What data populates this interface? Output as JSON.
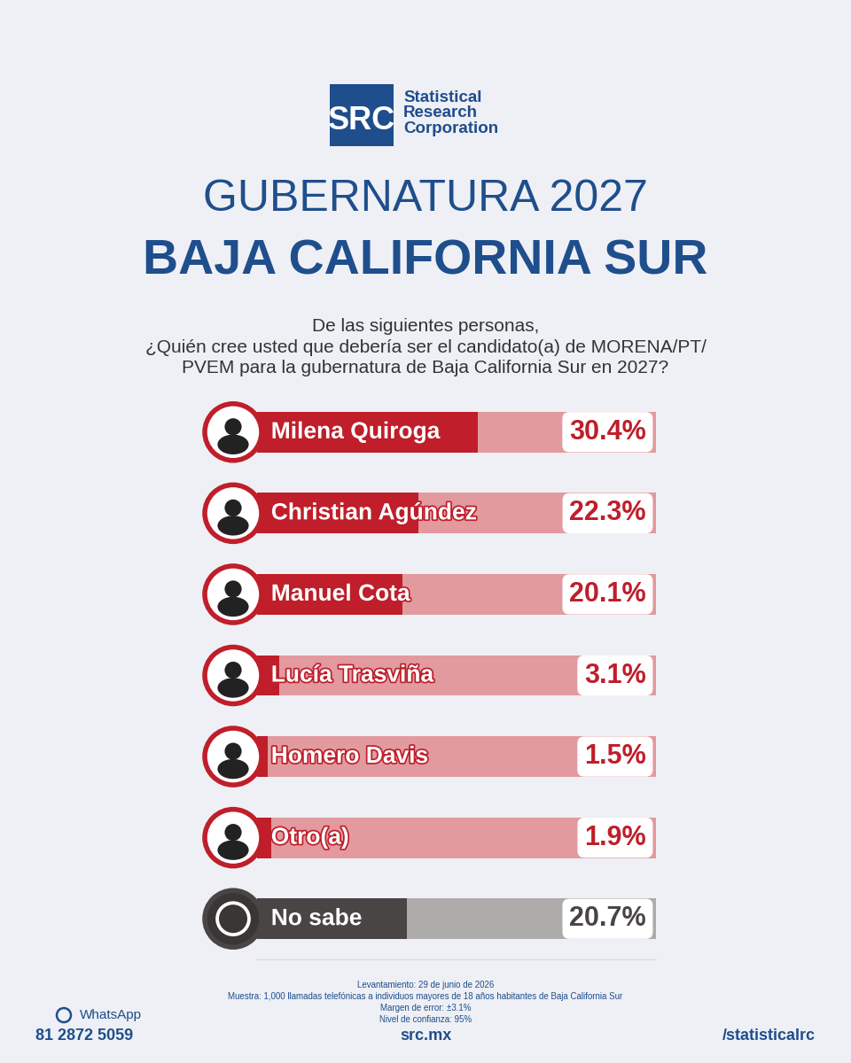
{
  "chart_data": {
    "type": "bar",
    "orientation": "horizontal",
    "subtitle": "GUBERNATURA 2027",
    "title": "BAJA CALIFORNIA SUR",
    "question": "De las siguientes personas,\n¿Quién cree usted que debería ser el candidato(a) de MORENA/PT/\nPVEM para la gubernatura de Baja California Sur en 2027?",
    "categories": [
      "Milena Quiroga",
      "Christian Agúndez",
      "Manuel Cota",
      "Lucía Trasviña",
      "Homero Davis",
      "Otro(a)",
      "No sabe"
    ],
    "values": [
      30.4,
      22.3,
      20.1,
      3.1,
      1.5,
      1.9,
      20.7
    ],
    "value_labels": [
      "30.4%",
      "22.3%",
      "20.1%",
      "3.1%",
      "1.5%",
      "1.9%",
      "20.7%"
    ],
    "colors": [
      "#bf1e2a",
      "#bf1e2a",
      "#bf1e2a",
      "#bf1e2a",
      "#bf1e2a",
      "#bf1e2a",
      "#4a4545"
    ],
    "data_labels": true,
    "tick_labels": false,
    "grid": false,
    "xlim": [
      0,
      55
    ],
    "brand": {
      "logo": "SRC",
      "name": "Statistical\nResearch\nCorporation"
    },
    "notes": [
      "Levantamiento: 29 de junio de 2026",
      "Muestra: 1,000 llamadas telefónicas a individuos mayores de 18 años habitantes de Baja California Sur",
      "Margen de error: ±3.1%",
      "Nivel de confianza: 95%"
    ],
    "footer": {
      "whatsapp_label": "WhatsApp",
      "whatsapp_number": "81 2872 5059",
      "website": "src.mx",
      "social": "/statisticalrc"
    }
  }
}
